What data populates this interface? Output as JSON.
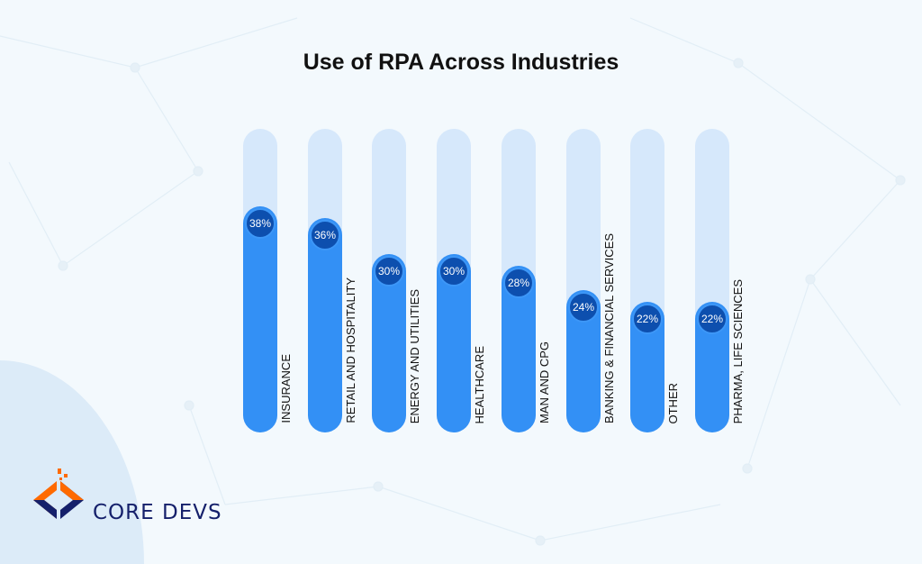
{
  "chart_data": {
    "type": "bar",
    "title": "Use of RPA Across Industries",
    "categories": [
      "INSURANCE",
      "RETAIL AND HOSPITALITY",
      "ENERGY AND UTILITIES",
      "HEALTHCARE",
      "MAN AND CPG",
      "BANKING & FINANCIAL SERVICES",
      "OTHER",
      "PHARMA, LIFE SCIENCES"
    ],
    "values": [
      38,
      36,
      30,
      30,
      28,
      24,
      22,
      22
    ],
    "data_labels": [
      "38%",
      "36%",
      "30%",
      "30%",
      "28%",
      "24%",
      "22%",
      "22%"
    ],
    "grid": false,
    "colors": {
      "fill": "#3390f5",
      "track": "#d6e8fb",
      "bubble": "#0d4fae"
    }
  },
  "logo": {
    "text": "CORE DEVS",
    "colors": [
      "#ff6a00",
      "#15206b"
    ]
  }
}
